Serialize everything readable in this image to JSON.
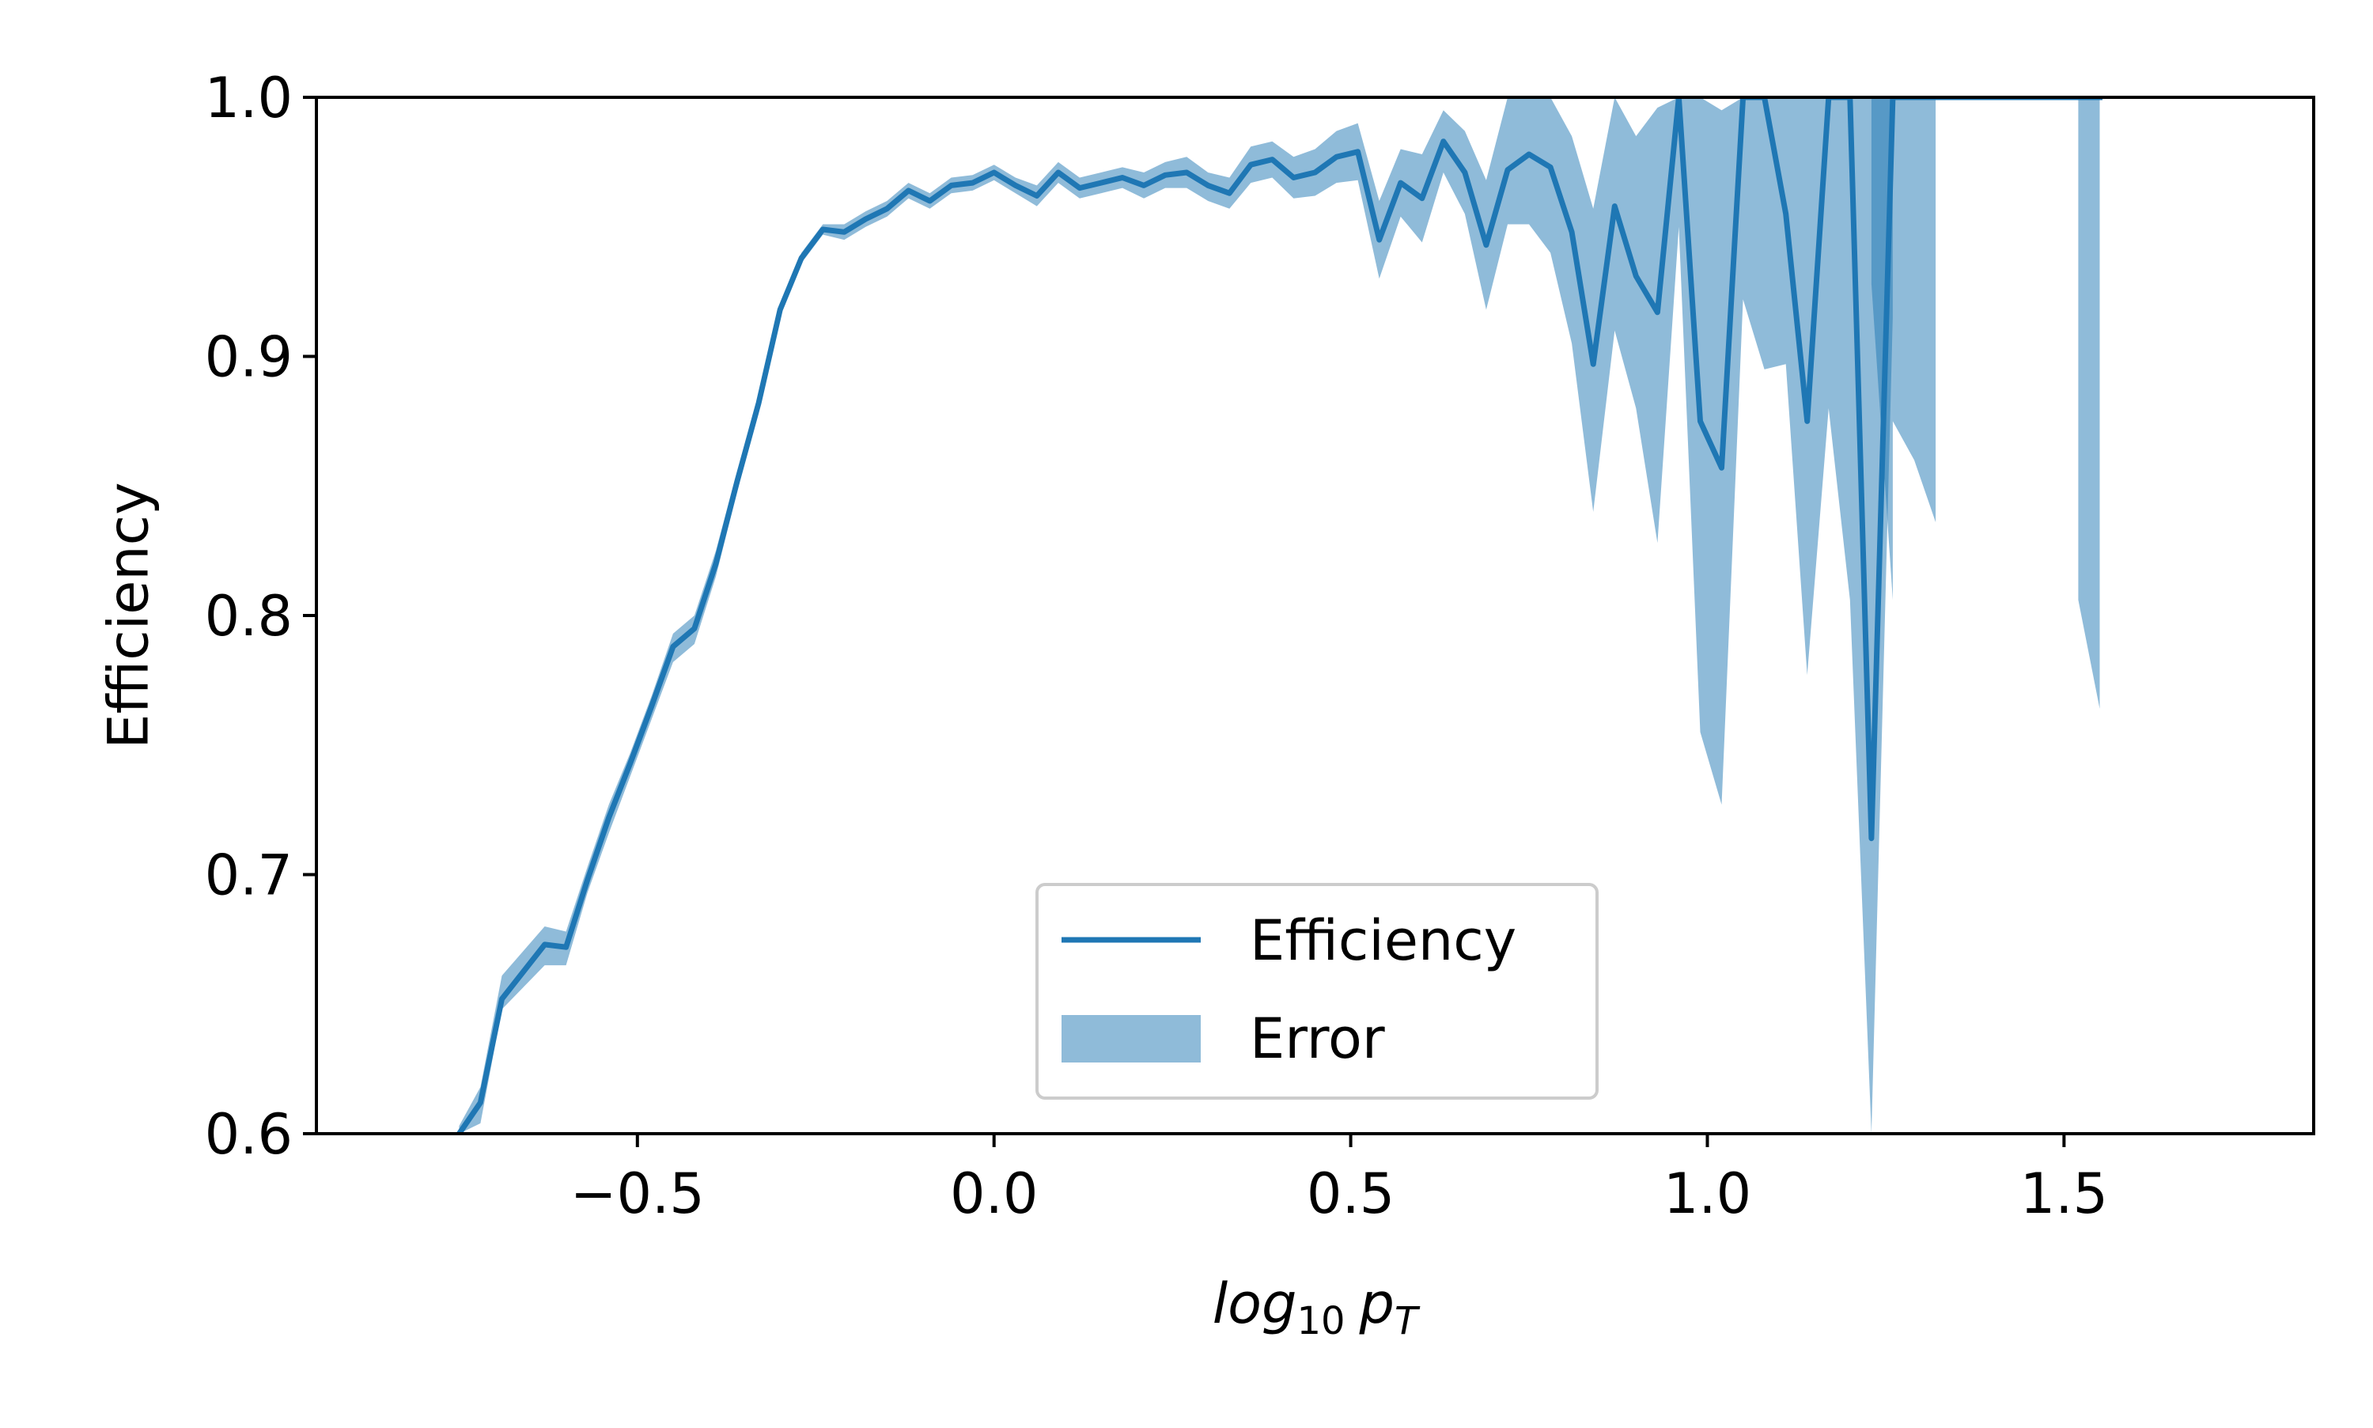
{
  "chart_data": {
    "type": "line",
    "title": "",
    "xlabel": "log10 pT",
    "xlabel_parts": {
      "base": "log",
      "base_sub": "10",
      "var": "p",
      "var_sub": "T"
    },
    "ylabel": "Efficiency",
    "xlim": [
      -0.95,
      1.85
    ],
    "ylim": [
      0.6,
      1.0
    ],
    "xticks": [
      -0.5,
      0.0,
      0.5,
      1.0,
      1.5
    ],
    "xtick_labels": [
      "−0.5",
      "0.0",
      "0.5",
      "1.0",
      "1.5"
    ],
    "yticks": [
      0.6,
      0.7,
      0.8,
      0.9,
      1.0
    ],
    "ytick_labels": [
      "0.6",
      "0.7",
      "0.8",
      "0.9",
      "1.0"
    ],
    "grid": false,
    "legend_position": "lower-center",
    "colors": {
      "line": "#1f77b4",
      "band": "#1f77b4"
    },
    "series": [
      {
        "name": "Efficiency",
        "kind": "line",
        "x": [
          -0.75,
          -0.72,
          -0.69,
          -0.63,
          -0.6,
          -0.57,
          -0.54,
          -0.51,
          -0.48,
          -0.45,
          -0.42,
          -0.39,
          -0.36,
          -0.33,
          -0.3,
          -0.27,
          -0.24,
          -0.21,
          -0.18,
          -0.15,
          -0.12,
          -0.09,
          -0.06,
          -0.03,
          0.0,
          0.03,
          0.06,
          0.09,
          0.12,
          0.15,
          0.18,
          0.21,
          0.24,
          0.27,
          0.3,
          0.33,
          0.36,
          0.39,
          0.42,
          0.45,
          0.48,
          0.51,
          0.54,
          0.57,
          0.6,
          0.63,
          0.66,
          0.69,
          0.72,
          0.75,
          0.78,
          0.81,
          0.84,
          0.87,
          0.9,
          0.93,
          0.96,
          0.99,
          1.02,
          1.05,
          1.08,
          1.11,
          1.14,
          1.17,
          1.2,
          1.23,
          1.26,
          1.29,
          1.32,
          1.52,
          1.55
        ],
        "y": [
          0.6,
          0.612,
          0.652,
          0.673,
          0.672,
          0.698,
          0.722,
          0.743,
          0.765,
          0.788,
          0.795,
          0.82,
          0.852,
          0.882,
          0.918,
          0.938,
          0.949,
          0.948,
          0.953,
          0.957,
          0.964,
          0.96,
          0.966,
          0.967,
          0.971,
          0.966,
          0.962,
          0.971,
          0.965,
          0.967,
          0.969,
          0.966,
          0.97,
          0.971,
          0.966,
          0.963,
          0.974,
          0.976,
          0.969,
          0.971,
          0.977,
          0.979,
          0.945,
          0.967,
          0.961,
          0.983,
          0.971,
          0.943,
          0.972,
          0.978,
          0.973,
          0.948,
          0.897,
          0.958,
          0.931,
          0.917,
          1.0,
          0.875,
          0.857,
          1.0,
          1.0,
          0.955,
          0.875,
          1.0,
          1.0,
          0.714,
          1.0,
          1.0,
          1.0,
          1.0,
          1.0
        ]
      },
      {
        "name": "Error",
        "kind": "band",
        "x": [
          -0.75,
          -0.72,
          -0.69,
          -0.63,
          -0.6,
          -0.57,
          -0.54,
          -0.51,
          -0.48,
          -0.45,
          -0.42,
          -0.39,
          -0.36,
          -0.33,
          -0.3,
          -0.27,
          -0.24,
          -0.21,
          -0.18,
          -0.15,
          -0.12,
          -0.09,
          -0.06,
          -0.03,
          0.0,
          0.03,
          0.06,
          0.09,
          0.12,
          0.15,
          0.18,
          0.21,
          0.24,
          0.27,
          0.3,
          0.33,
          0.36,
          0.39,
          0.42,
          0.45,
          0.48,
          0.51,
          0.54,
          0.57,
          0.6,
          0.63,
          0.66,
          0.69,
          0.72,
          0.75,
          0.78,
          0.81,
          0.84,
          0.87,
          0.9,
          0.93,
          0.96,
          0.99,
          1.02,
          1.05,
          1.08,
          1.11,
          1.14,
          1.17,
          1.2,
          1.23,
          1.26
        ],
        "upper": [
          0.603,
          0.618,
          0.661,
          0.68,
          0.678,
          0.703,
          0.727,
          0.747,
          0.769,
          0.793,
          0.8,
          0.825,
          0.856,
          0.885,
          0.92,
          0.94,
          0.951,
          0.951,
          0.956,
          0.96,
          0.967,
          0.963,
          0.969,
          0.97,
          0.974,
          0.969,
          0.966,
          0.975,
          0.969,
          0.971,
          0.973,
          0.971,
          0.975,
          0.977,
          0.971,
          0.969,
          0.981,
          0.983,
          0.977,
          0.98,
          0.987,
          0.99,
          0.96,
          0.98,
          0.978,
          0.995,
          0.987,
          0.968,
          1.0,
          1.0,
          1.0,
          0.985,
          0.957,
          1.0,
          0.985,
          0.996,
          1.0,
          1.0,
          0.995,
          1.0,
          1.0,
          1.0,
          1.0,
          1.0,
          1.0,
          1.0,
          1.0
        ],
        "lower": [
          0.6,
          0.604,
          0.648,
          0.665,
          0.665,
          0.693,
          0.716,
          0.738,
          0.76,
          0.782,
          0.789,
          0.815,
          0.848,
          0.878,
          0.916,
          0.936,
          0.947,
          0.945,
          0.95,
          0.954,
          0.961,
          0.957,
          0.963,
          0.964,
          0.968,
          0.963,
          0.958,
          0.967,
          0.961,
          0.963,
          0.965,
          0.961,
          0.965,
          0.965,
          0.96,
          0.957,
          0.967,
          0.969,
          0.961,
          0.962,
          0.967,
          0.968,
          0.93,
          0.954,
          0.944,
          0.971,
          0.955,
          0.918,
          0.951,
          0.951,
          0.94,
          0.905,
          0.84,
          0.91,
          0.88,
          0.828,
          0.95,
          0.755,
          0.727,
          0.922,
          0.895,
          0.897,
          0.777,
          0.88,
          0.806,
          0.6,
          0.915
        ]
      }
    ],
    "extra_bands": [
      {
        "x": [
          1.23,
          1.26
        ],
        "upper": [
          1.0,
          1.0
        ],
        "lower": [
          0.928,
          0.806
        ]
      },
      {
        "x": [
          1.26,
          1.29,
          1.32
        ],
        "upper": [
          1.0,
          1.0,
          1.0
        ],
        "lower": [
          0.875,
          0.86,
          0.836
        ]
      },
      {
        "x": [
          1.52,
          1.55
        ],
        "upper": [
          1.0,
          1.0
        ],
        "lower": [
          0.806,
          0.764
        ]
      }
    ],
    "legend": [
      {
        "label": "Efficiency",
        "kind": "line"
      },
      {
        "label": "Error",
        "kind": "band"
      }
    ]
  }
}
